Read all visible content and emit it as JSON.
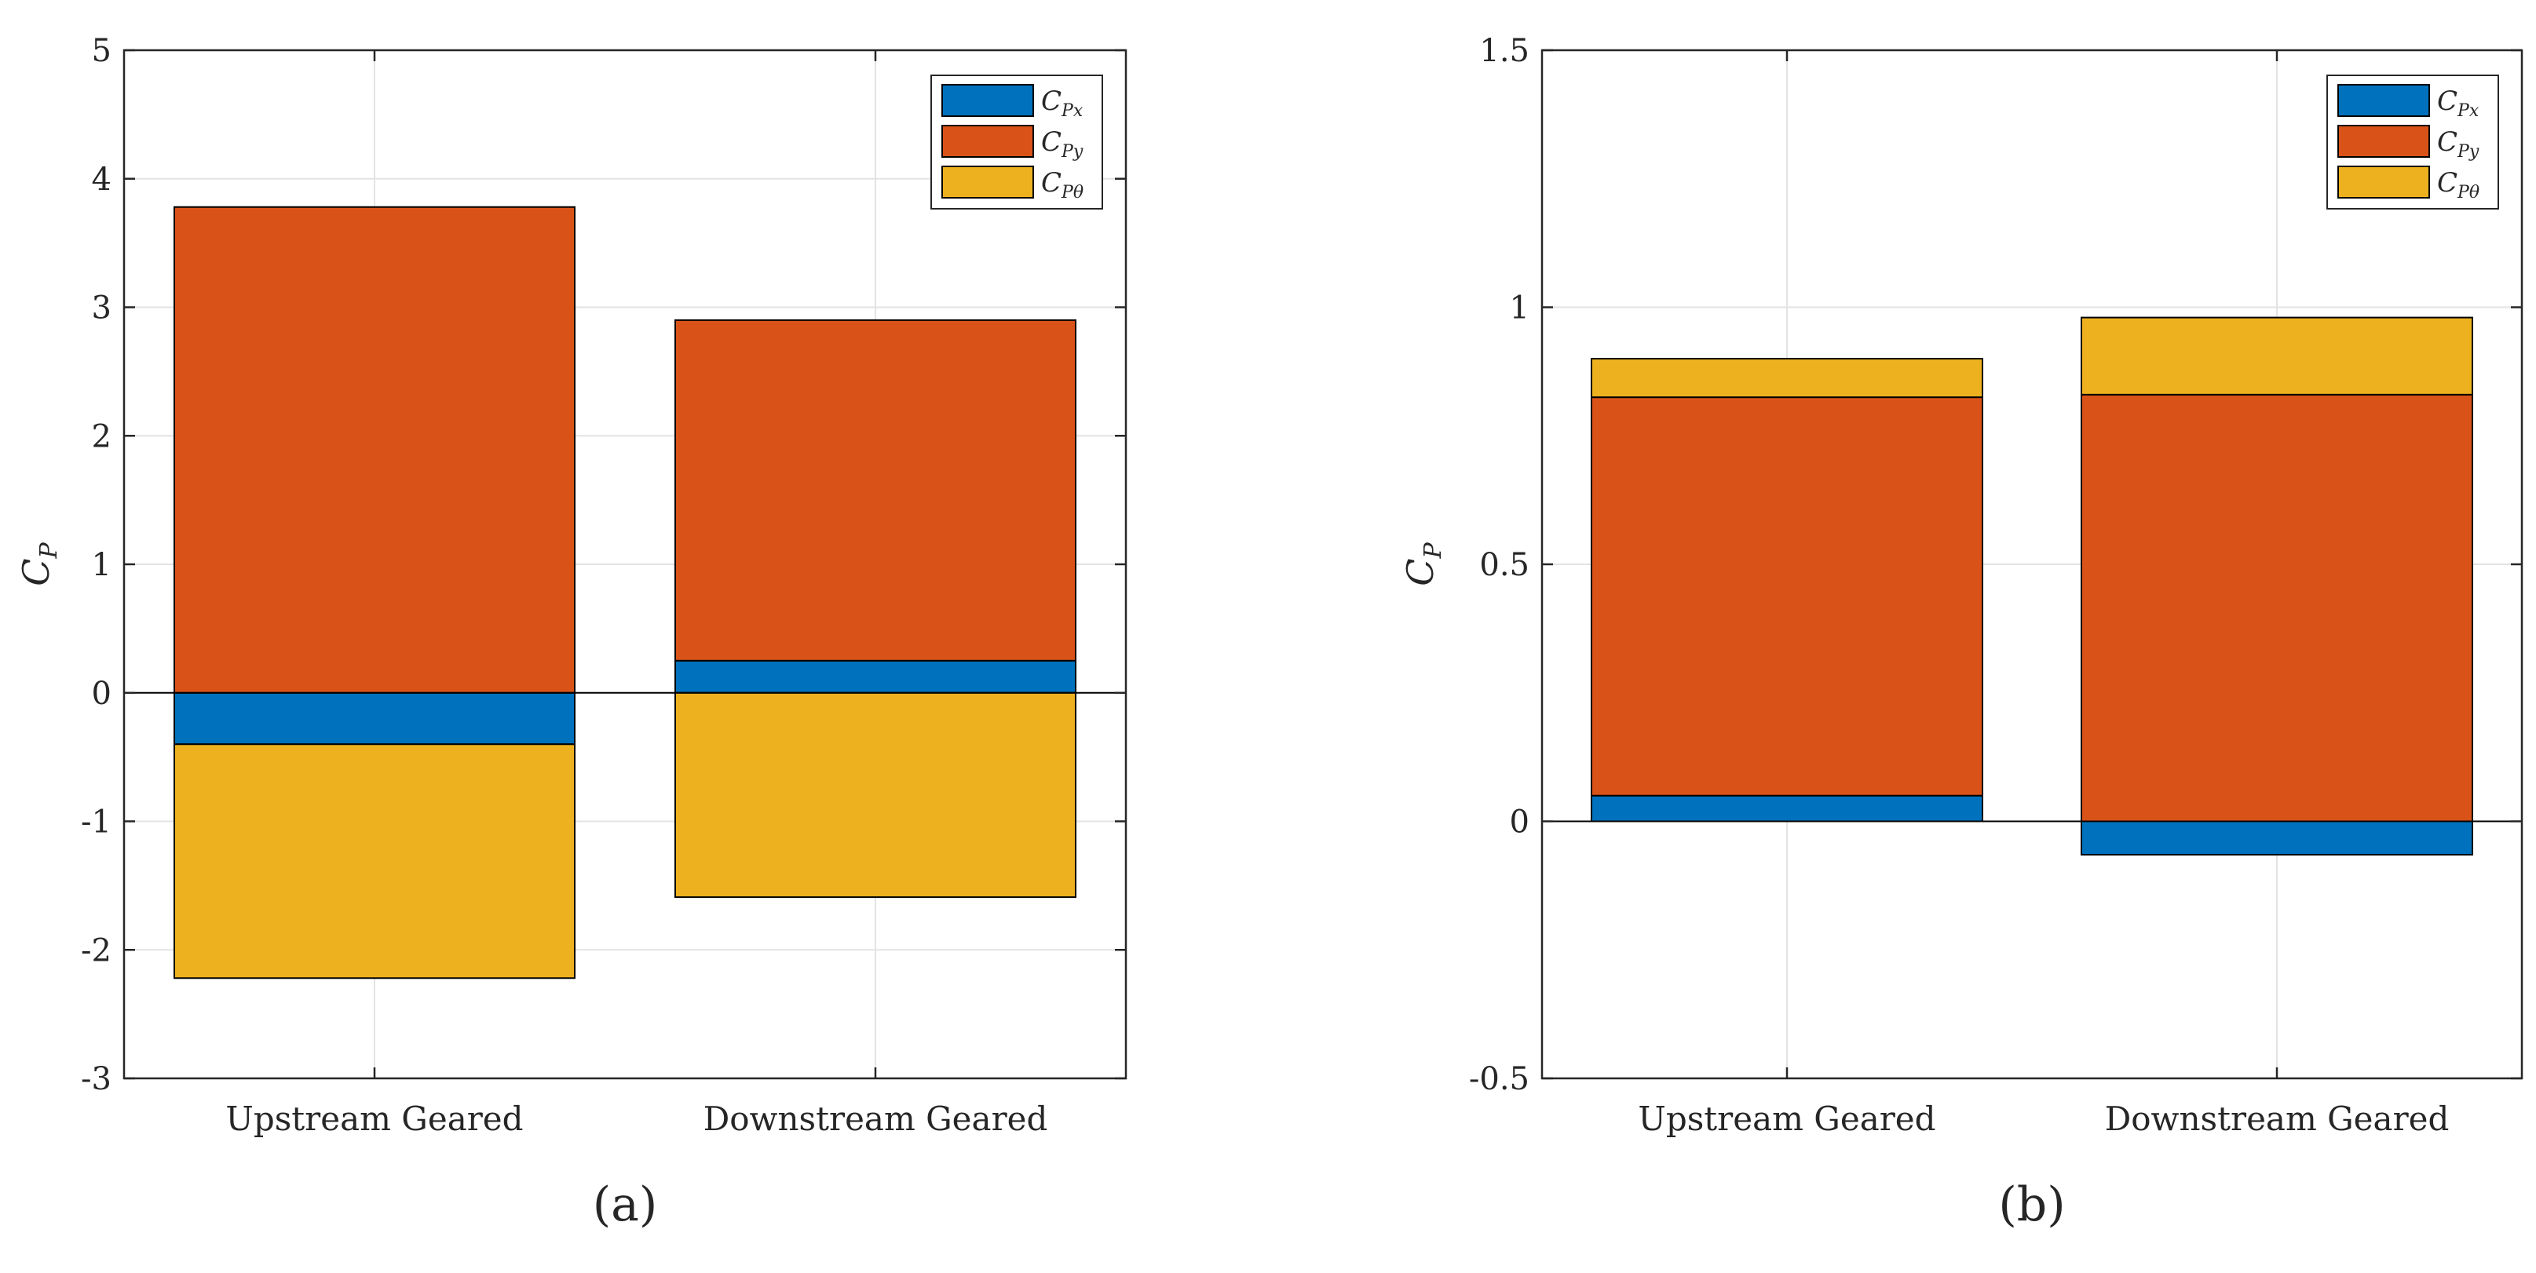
{
  "figure": {
    "colors": {
      "cpx": "#0072BD",
      "cpy": "#D95319",
      "cptheta": "#EDB120",
      "axis": "#262626",
      "grid": "#e3e3e3"
    }
  },
  "chart_data": [
    {
      "type": "bar",
      "stacked": true,
      "panel_label": "(a)",
      "ylabel": {
        "main": "C",
        "sub": "P"
      },
      "ylim": [
        -3,
        5
      ],
      "yticks": [
        "-3",
        "-2",
        "-1",
        "0",
        "1",
        "2",
        "3",
        "4",
        "5"
      ],
      "categories": [
        "Upstream Geared",
        "Downstream Geared"
      ],
      "grid": true,
      "legend_position": "top-right",
      "series": [
        {
          "name": "C_Px",
          "label_main": "C",
          "label_sub": "Px",
          "color_key": "cpx",
          "values": [
            -0.4,
            0.25
          ]
        },
        {
          "name": "C_Py",
          "label_main": "C",
          "label_sub": "Py",
          "color_key": "cpy",
          "values": [
            3.78,
            2.65
          ]
        },
        {
          "name": "C_Ptheta",
          "label_main": "C",
          "label_sub": "Pθ",
          "color_key": "cptheta",
          "values": [
            -1.82,
            -1.59
          ]
        }
      ]
    },
    {
      "type": "bar",
      "stacked": true,
      "panel_label": "(b)",
      "ylabel": {
        "main": "C",
        "sub": "P"
      },
      "ylim": [
        -0.5,
        1.5
      ],
      "yticks": [
        "-0.5",
        "0",
        "0.5",
        "1",
        "1.5"
      ],
      "categories": [
        "Upstream Geared",
        "Downstream Geared"
      ],
      "grid": true,
      "legend_position": "top-right",
      "series": [
        {
          "name": "C_Px",
          "label_main": "C",
          "label_sub": "Px",
          "color_key": "cpx",
          "values": [
            0.05,
            -0.065
          ]
        },
        {
          "name": "C_Py",
          "label_main": "C",
          "label_sub": "Py",
          "color_key": "cpy",
          "values": [
            0.775,
            0.83
          ]
        },
        {
          "name": "C_Ptheta",
          "label_main": "C",
          "label_sub": "Pθ",
          "color_key": "cptheta",
          "values": [
            0.075,
            0.15
          ]
        }
      ]
    }
  ]
}
